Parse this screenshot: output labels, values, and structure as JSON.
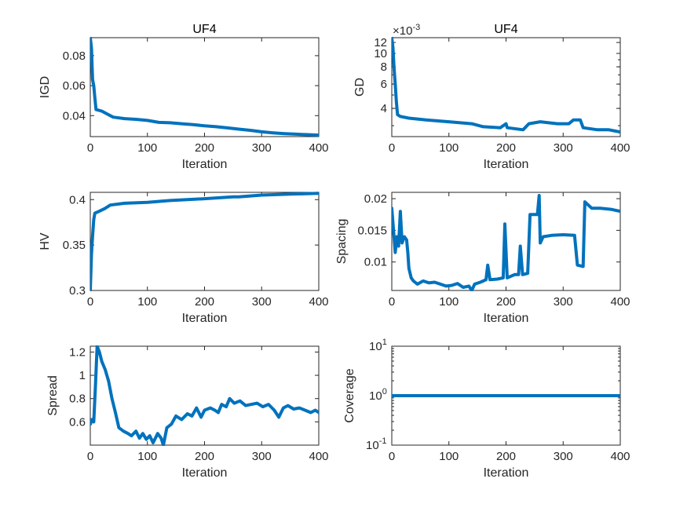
{
  "figure": {
    "line_color": "#0072BD",
    "axis_color": "#262626"
  },
  "chart_data": [
    {
      "type": "line",
      "name": "igd",
      "title": "UF4",
      "xlabel": "Iteration",
      "ylabel": "IGD",
      "xlim": [
        0,
        400
      ],
      "ylim": [
        0.026,
        0.092
      ],
      "yscale": "linear",
      "xticks": [
        0,
        100,
        200,
        300,
        400
      ],
      "xticklabels": [
        "0",
        "100",
        "200",
        "300",
        "400"
      ],
      "yticks": [
        0.04,
        0.06,
        0.08
      ],
      "yticklabels": [
        "0.04",
        "0.06",
        "0.08"
      ],
      "series": [
        {
          "name": "IGD",
          "points": [
            [
              0,
              0.092
            ],
            [
              2,
              0.085
            ],
            [
              4,
              0.064
            ],
            [
              6,
              0.06
            ],
            [
              8,
              0.052
            ],
            [
              10,
              0.044
            ],
            [
              20,
              0.043
            ],
            [
              30,
              0.041
            ],
            [
              40,
              0.039
            ],
            [
              60,
              0.038
            ],
            [
              80,
              0.0375
            ],
            [
              100,
              0.0368
            ],
            [
              120,
              0.0355
            ],
            [
              140,
              0.0352
            ],
            [
              160,
              0.0346
            ],
            [
              180,
              0.034
            ],
            [
              200,
              0.0332
            ],
            [
              220,
              0.0326
            ],
            [
              240,
              0.0318
            ],
            [
              260,
              0.031
            ],
            [
              280,
              0.0302
            ],
            [
              300,
              0.0292
            ],
            [
              320,
              0.0285
            ],
            [
              340,
              0.028
            ],
            [
              360,
              0.0276
            ],
            [
              380,
              0.0273
            ],
            [
              400,
              0.027
            ]
          ]
        }
      ]
    },
    {
      "type": "line",
      "name": "gd",
      "title": "UF4",
      "xlabel": "Iteration",
      "ylabel": "GD",
      "exponent_label": "×10",
      "exponent_power": "-3",
      "xlim": [
        0,
        400
      ],
      "ylim": [
        0.0025,
        0.013
      ],
      "yscale": "log",
      "xticks": [
        0,
        100,
        200,
        300,
        400
      ],
      "xticklabels": [
        "0",
        "100",
        "200",
        "300",
        "400"
      ],
      "yticks": [
        0.004,
        0.006,
        0.008,
        0.01,
        0.012
      ],
      "yticklabels": [
        "4",
        "6",
        "8",
        "10",
        "12"
      ],
      "series": [
        {
          "name": "GD",
          "points": [
            [
              0,
              0.013
            ],
            [
              2,
              0.011
            ],
            [
              4,
              0.0078
            ],
            [
              6,
              0.006
            ],
            [
              8,
              0.0045
            ],
            [
              10,
              0.0036
            ],
            [
              15,
              0.0035
            ],
            [
              30,
              0.0034
            ],
            [
              60,
              0.0033
            ],
            [
              100,
              0.0032
            ],
            [
              140,
              0.0031
            ],
            [
              160,
              0.00295
            ],
            [
              190,
              0.0029
            ],
            [
              200,
              0.0031
            ],
            [
              202,
              0.0029
            ],
            [
              230,
              0.0028
            ],
            [
              240,
              0.0031
            ],
            [
              260,
              0.0032
            ],
            [
              290,
              0.0031
            ],
            [
              310,
              0.0031
            ],
            [
              318,
              0.0033
            ],
            [
              330,
              0.0033
            ],
            [
              335,
              0.0029
            ],
            [
              360,
              0.0028
            ],
            [
              380,
              0.0028
            ],
            [
              400,
              0.0027
            ]
          ]
        }
      ]
    },
    {
      "type": "line",
      "name": "hv",
      "title": "",
      "xlabel": "Iteration",
      "ylabel": "HV",
      "xlim": [
        0,
        400
      ],
      "ylim": [
        0.3,
        0.408
      ],
      "yscale": "linear",
      "xticks": [
        0,
        100,
        200,
        300,
        400
      ],
      "xticklabels": [
        "0",
        "100",
        "200",
        "300",
        "400"
      ],
      "yticks": [
        0.3,
        0.35,
        0.4
      ],
      "yticklabels": [
        "0.3",
        "0.35",
        "0.4"
      ],
      "series": [
        {
          "name": "HV",
          "points": [
            [
              0,
              0.3
            ],
            [
              2,
              0.34
            ],
            [
              4,
              0.36
            ],
            [
              6,
              0.378
            ],
            [
              8,
              0.385
            ],
            [
              15,
              0.387
            ],
            [
              25,
              0.39
            ],
            [
              35,
              0.394
            ],
            [
              60,
              0.396
            ],
            [
              100,
              0.397
            ],
            [
              140,
              0.399
            ],
            [
              200,
              0.401
            ],
            [
              250,
              0.403
            ],
            [
              260,
              0.403
            ],
            [
              300,
              0.405
            ],
            [
              350,
              0.406
            ],
            [
              400,
              0.407
            ]
          ]
        }
      ]
    },
    {
      "type": "line",
      "name": "spacing",
      "title": "",
      "xlabel": "Iteration",
      "ylabel": "Spacing",
      "xlim": [
        0,
        400
      ],
      "ylim": [
        0.0055,
        0.021
      ],
      "yscale": "linear",
      "xticks": [
        0,
        100,
        200,
        300,
        400
      ],
      "xticklabels": [
        "0",
        "100",
        "200",
        "300",
        "400"
      ],
      "yticks": [
        0.01,
        0.015,
        0.02
      ],
      "yticklabels": [
        "0.01",
        "0.015",
        "0.02"
      ],
      "series": [
        {
          "name": "Spacing",
          "points": [
            [
              0,
              0.0185
            ],
            [
              3,
              0.015
            ],
            [
              6,
              0.0115
            ],
            [
              9,
              0.014
            ],
            [
              12,
              0.0125
            ],
            [
              15,
              0.018
            ],
            [
              18,
              0.013
            ],
            [
              22,
              0.014
            ],
            [
              26,
              0.0135
            ],
            [
              28,
              0.0115
            ],
            [
              30,
              0.009
            ],
            [
              34,
              0.0075
            ],
            [
              38,
              0.007
            ],
            [
              45,
              0.0065
            ],
            [
              55,
              0.007
            ],
            [
              65,
              0.0067
            ],
            [
              75,
              0.0068
            ],
            [
              85,
              0.0065
            ],
            [
              95,
              0.0062
            ],
            [
              105,
              0.0063
            ],
            [
              115,
              0.0066
            ],
            [
              125,
              0.006
            ],
            [
              135,
              0.0062
            ],
            [
              140,
              0.0055
            ],
            [
              145,
              0.0065
            ],
            [
              155,
              0.0068
            ],
            [
              165,
              0.0072
            ],
            [
              168,
              0.0095
            ],
            [
              172,
              0.0072
            ],
            [
              185,
              0.0073
            ],
            [
              195,
              0.0075
            ],
            [
              198,
              0.016
            ],
            [
              202,
              0.0075
            ],
            [
              215,
              0.008
            ],
            [
              222,
              0.008
            ],
            [
              225,
              0.0125
            ],
            [
              229,
              0.008
            ],
            [
              238,
              0.0082
            ],
            [
              242,
              0.0175
            ],
            [
              255,
              0.0175
            ],
            [
              258,
              0.0205
            ],
            [
              260,
              0.013
            ],
            [
              265,
              0.014
            ],
            [
              280,
              0.0142
            ],
            [
              300,
              0.0143
            ],
            [
              320,
              0.0142
            ],
            [
              325,
              0.0095
            ],
            [
              335,
              0.0093
            ],
            [
              338,
              0.0195
            ],
            [
              350,
              0.0185
            ],
            [
              365,
              0.0185
            ],
            [
              385,
              0.0183
            ],
            [
              400,
              0.018
            ]
          ]
        }
      ]
    },
    {
      "type": "line",
      "name": "spread",
      "title": "",
      "xlabel": "Iteration",
      "ylabel": "Spread",
      "xlim": [
        0,
        400
      ],
      "ylim": [
        0.4,
        1.25
      ],
      "yscale": "linear",
      "xticks": [
        0,
        100,
        200,
        300,
        400
      ],
      "xticklabels": [
        "0",
        "100",
        "200",
        "300",
        "400"
      ],
      "yticks": [
        0.6,
        0.8,
        1.0,
        1.2
      ],
      "yticklabels": [
        "0.6",
        "0.8",
        "1",
        "1.2"
      ],
      "series": [
        {
          "name": "Spread",
          "points": [
            [
              0,
              0.58
            ],
            [
              3,
              0.62
            ],
            [
              6,
              0.6
            ],
            [
              9,
              0.9
            ],
            [
              12,
              1.25
            ],
            [
              16,
              1.2
            ],
            [
              20,
              1.12
            ],
            [
              26,
              1.05
            ],
            [
              32,
              0.95
            ],
            [
              38,
              0.8
            ],
            [
              44,
              0.68
            ],
            [
              50,
              0.55
            ],
            [
              58,
              0.52
            ],
            [
              66,
              0.5
            ],
            [
              72,
              0.48
            ],
            [
              80,
              0.52
            ],
            [
              86,
              0.46
            ],
            [
              92,
              0.5
            ],
            [
              98,
              0.45
            ],
            [
              104,
              0.48
            ],
            [
              110,
              0.42
            ],
            [
              118,
              0.5
            ],
            [
              124,
              0.46
            ],
            [
              128,
              0.4
            ],
            [
              134,
              0.55
            ],
            [
              142,
              0.58
            ],
            [
              150,
              0.65
            ],
            [
              160,
              0.62
            ],
            [
              170,
              0.67
            ],
            [
              178,
              0.65
            ],
            [
              186,
              0.72
            ],
            [
              194,
              0.64
            ],
            [
              200,
              0.7
            ],
            [
              210,
              0.72
            ],
            [
              218,
              0.7
            ],
            [
              224,
              0.68
            ],
            [
              230,
              0.75
            ],
            [
              238,
              0.73
            ],
            [
              244,
              0.8
            ],
            [
              252,
              0.76
            ],
            [
              262,
              0.78
            ],
            [
              272,
              0.74
            ],
            [
              282,
              0.75
            ],
            [
              292,
              0.76
            ],
            [
              302,
              0.73
            ],
            [
              312,
              0.75
            ],
            [
              322,
              0.7
            ],
            [
              330,
              0.64
            ],
            [
              338,
              0.72
            ],
            [
              346,
              0.74
            ],
            [
              356,
              0.71
            ],
            [
              366,
              0.72
            ],
            [
              376,
              0.7
            ],
            [
              386,
              0.68
            ],
            [
              394,
              0.7
            ],
            [
              400,
              0.68
            ]
          ]
        }
      ]
    },
    {
      "type": "line",
      "name": "coverage",
      "title": "",
      "xlabel": "Iteration",
      "ylabel": "Coverage",
      "xlim": [
        0,
        400
      ],
      "ylim": [
        0.1,
        10
      ],
      "yscale": "log",
      "xticks": [
        0,
        100,
        200,
        300,
        400
      ],
      "xticklabels": [
        "0",
        "100",
        "200",
        "300",
        "400"
      ],
      "yticks": [
        0.1,
        1,
        10
      ],
      "yticklabels": [
        [
          "10",
          "-1"
        ],
        [
          "10",
          "0"
        ],
        [
          "10",
          "1"
        ]
      ],
      "series": [
        {
          "name": "Coverage",
          "points": [
            [
              0,
              1
            ],
            [
              400,
              1
            ]
          ]
        }
      ]
    }
  ]
}
